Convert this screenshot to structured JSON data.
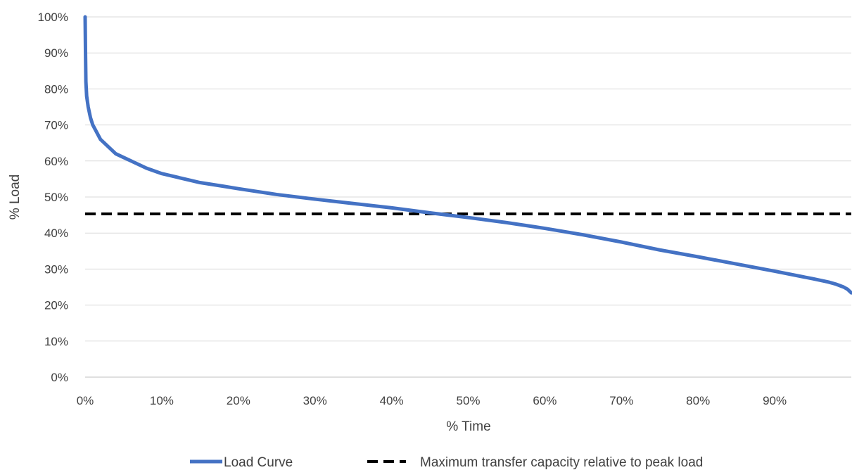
{
  "chart_data": {
    "type": "line",
    "title": "",
    "xlabel": "% Time",
    "ylabel": "% Load",
    "xlim": [
      0,
      100
    ],
    "ylim": [
      0,
      100
    ],
    "x_ticks": [
      0,
      10,
      20,
      30,
      40,
      50,
      60,
      70,
      80,
      90
    ],
    "x_tick_labels": [
      "0%",
      "10%",
      "20%",
      "30%",
      "40%",
      "50%",
      "60%",
      "70%",
      "80%",
      "90%"
    ],
    "y_ticks": [
      0,
      10,
      20,
      30,
      40,
      50,
      60,
      70,
      80,
      90,
      100
    ],
    "y_tick_labels": [
      "0%",
      "10%",
      "20%",
      "30%",
      "40%",
      "50%",
      "60%",
      "70%",
      "80%",
      "90%",
      "100%"
    ],
    "grid": "horizontal",
    "legend_position": "bottom",
    "series": [
      {
        "name": "Load Curve",
        "color": "#4472C4",
        "style": "solid",
        "x": [
          0,
          0.05,
          0.1,
          0.2,
          0.4,
          0.7,
          1,
          1.5,
          2,
          3,
          4,
          5,
          6,
          8,
          10,
          12,
          15,
          18,
          20,
          25,
          30,
          35,
          40,
          45,
          50,
          55,
          60,
          65,
          70,
          75,
          80,
          85,
          90,
          95,
          97,
          98,
          99,
          99.5,
          100
        ],
        "y": [
          100,
          90,
          82,
          78,
          75,
          72,
          70,
          68,
          66,
          64,
          62,
          61,
          60,
          58,
          56.5,
          55.5,
          54,
          53,
          52.3,
          50.7,
          49.4,
          48.2,
          47,
          45.6,
          44.3,
          42.9,
          41.3,
          39.5,
          37.5,
          35.3,
          33.4,
          31.4,
          29.4,
          27.3,
          26.4,
          25.8,
          25,
          24.4,
          23.4
        ]
      },
      {
        "name": "Maximum transfer capacity relative to peak load",
        "color": "#000000",
        "style": "dashed",
        "x": [
          0,
          100
        ],
        "y": [
          45.3,
          45.3
        ]
      }
    ]
  }
}
